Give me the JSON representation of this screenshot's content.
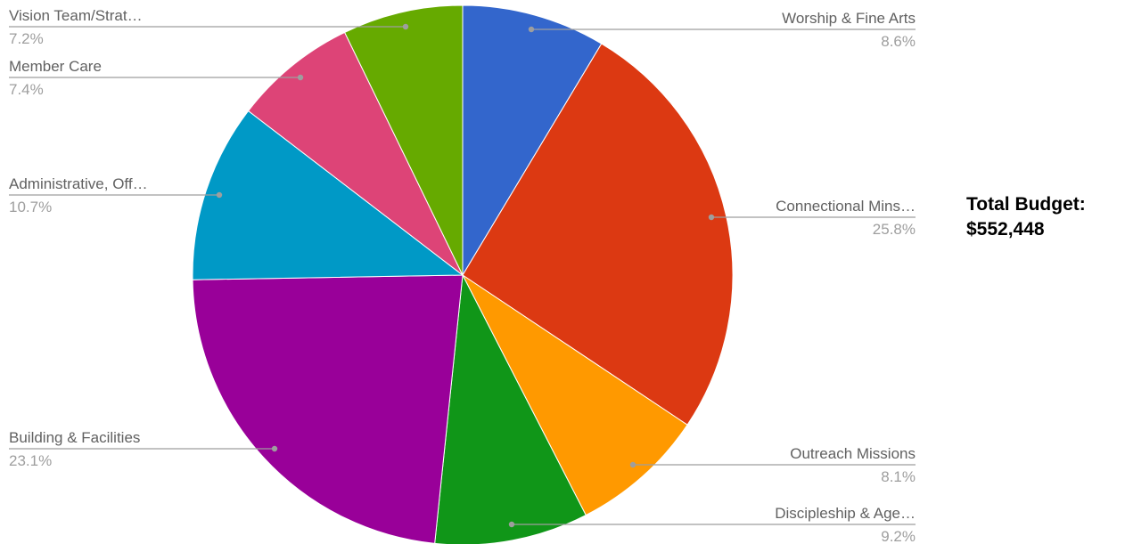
{
  "chart_data": {
    "type": "pie",
    "start_angle_deg": 0,
    "direction": "clockwise",
    "slices": [
      {
        "label": "Worship & Fine Arts",
        "percent_label": "8.6%",
        "value": 8.6,
        "color": "#3366cc"
      },
      {
        "label": "Connectional Mins…",
        "percent_label": "25.8%",
        "value": 25.8,
        "color": "#dc3912"
      },
      {
        "label": "Outreach Missions",
        "percent_label": "8.1%",
        "value": 8.1,
        "color": "#ff9900"
      },
      {
        "label": "Discipleship & Age…",
        "percent_label": "9.2%",
        "value": 9.2,
        "color": "#109618"
      },
      {
        "label": "Building & Facilities",
        "percent_label": "23.1%",
        "value": 23.1,
        "color": "#990099"
      },
      {
        "label": "Administrative, Off…",
        "percent_label": "10.7%",
        "value": 10.7,
        "color": "#0099c6"
      },
      {
        "label": "Member Care",
        "percent_label": "7.4%",
        "value": 7.4,
        "color": "#dd4477"
      },
      {
        "label": "Vision Team/Strat…",
        "percent_label": "7.2%",
        "value": 7.2,
        "color": "#66aa00"
      }
    ]
  },
  "annotation": {
    "line1": "Total Budget:",
    "line2": "$552,448"
  }
}
